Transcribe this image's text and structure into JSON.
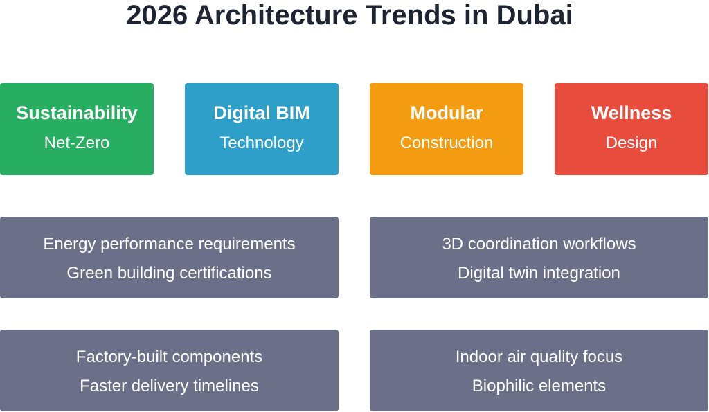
{
  "title": "2026 Architecture Trends in Dubai",
  "trends": [
    {
      "name": "Sustainability",
      "sub": "Net-Zero"
    },
    {
      "name": "Digital BIM",
      "sub": "Technology"
    },
    {
      "name": "Modular",
      "sub": "Construction"
    },
    {
      "name": "Wellness",
      "sub": "Design"
    }
  ],
  "details": [
    [
      "Energy performance requirements",
      "Green building certifications"
    ],
    [
      "3D coordination workflows",
      "Digital twin integration"
    ],
    [
      "Factory-built components",
      "Faster delivery timelines"
    ],
    [
      "Indoor air quality focus",
      "Biophilic elements"
    ]
  ]
}
